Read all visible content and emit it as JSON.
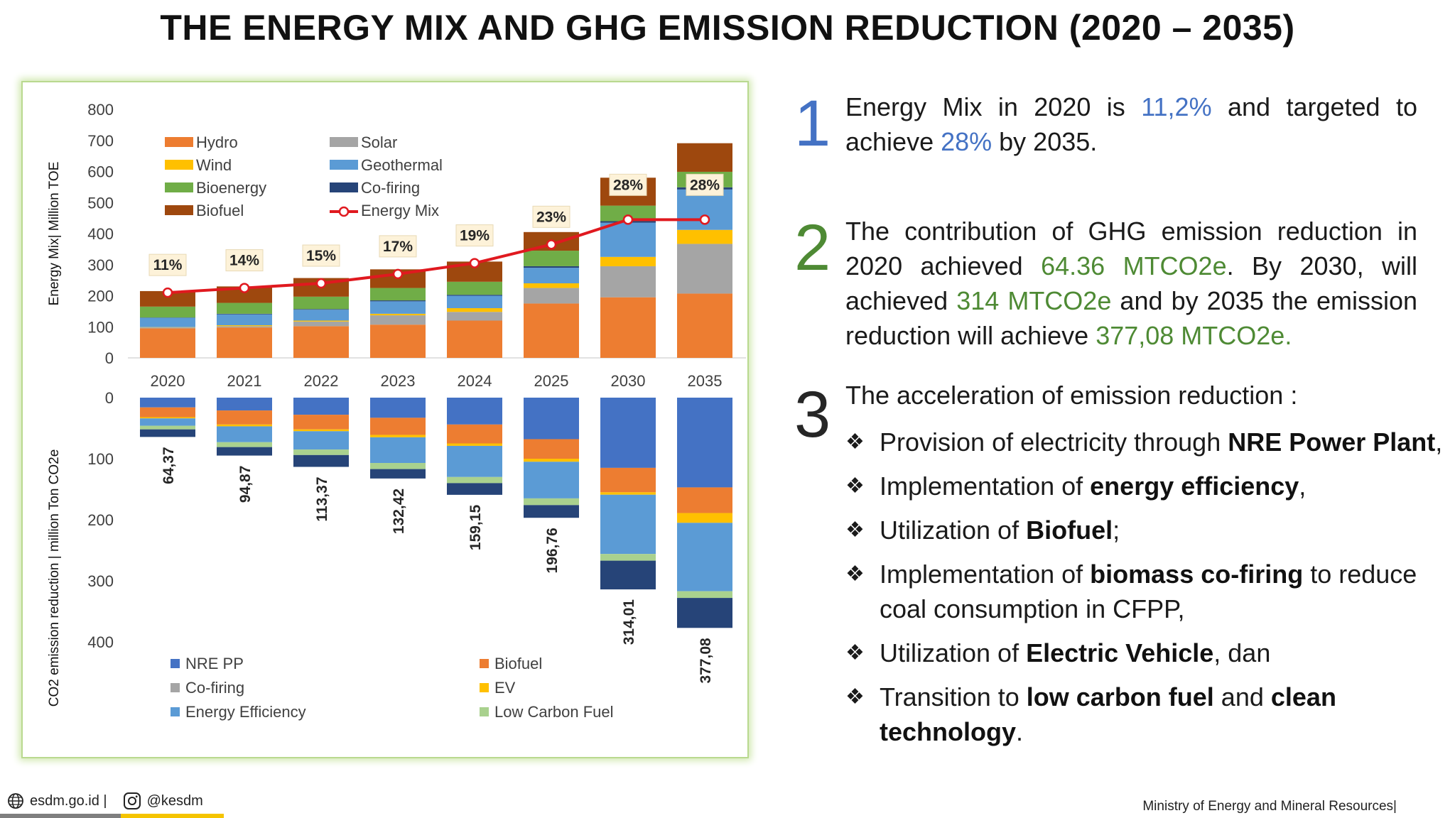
{
  "title": "THE ENERGY MIX AND GHG EMISSION REDUCTION (2020 – 2035)",
  "colors": {
    "hydro": "#ed7d31",
    "wind": "#ffc000",
    "bioenergy": "#70ad47",
    "biofuel": "#9e480e",
    "solar": "#a5a5a5",
    "geothermal": "#5b9bd5",
    "cofiring": "#264478",
    "energy_mix": "#e0191f",
    "nre_pp": "#4472c4",
    "biofuel_lower": "#ed7d31",
    "cofiring_lower": "#a5a5a5",
    "ev": "#ffc000",
    "energy_efficiency": "#5b9bd5",
    "low_carbon_fuel": "#a9d18e",
    "accent_blue": "#4472c4",
    "accent_green": "#4e8a34"
  },
  "chart_data": [
    {
      "type": "bar",
      "stacked": true,
      "categories": [
        "2020",
        "2021",
        "2022",
        "2023",
        "2024",
        "2025",
        "2030",
        "2035"
      ],
      "ylabel": "Energy Mix| Million TOE",
      "ylim": [
        0,
        800
      ],
      "yticks": [
        "0",
        "100",
        "200",
        "300",
        "400",
        "500",
        "600",
        "700",
        "800"
      ],
      "legend_position": "top-left",
      "series": [
        {
          "name": "Hydro",
          "values": [
            95,
            98,
            102,
            107,
            120,
            175,
            195,
            207
          ]
        },
        {
          "name": "Solar",
          "values": [
            3,
            4,
            15,
            30,
            28,
            50,
            100,
            160
          ]
        },
        {
          "name": "Wind",
          "values": [
            1,
            3,
            3,
            5,
            12,
            15,
            30,
            45
          ]
        },
        {
          "name": "Geothermal",
          "values": [
            30,
            35,
            35,
            40,
            40,
            50,
            110,
            130
          ]
        },
        {
          "name": "Co-firing",
          "values": [
            1,
            2,
            2,
            3,
            3,
            5,
            5,
            7
          ]
        },
        {
          "name": "Bioenergy",
          "values": [
            35,
            35,
            40,
            40,
            42,
            50,
            50,
            50
          ]
        },
        {
          "name": "Biofuel",
          "values": [
            50,
            53,
            60,
            60,
            65,
            60,
            90,
            92
          ]
        }
      ],
      "line_series": {
        "name": "Energy Mix",
        "y_plot": [
          210,
          225,
          240,
          270,
          305,
          365,
          445,
          445
        ]
      },
      "data_labels": [
        "11%",
        "14%",
        "15%",
        "17%",
        "19%",
        "23%",
        "28%",
        "28%"
      ]
    },
    {
      "type": "bar",
      "stacked": true,
      "orientation": "downward",
      "categories": [
        "2020",
        "2021",
        "2022",
        "2023",
        "2024",
        "2025",
        "2030",
        "2035"
      ],
      "ylabel": "CO2 emission reduction | million Ton CO2e",
      "ylim": [
        0,
        400
      ],
      "yticks": [
        "0",
        "100",
        "200",
        "300",
        "400"
      ],
      "legend_position": "bottom",
      "series": [
        {
          "name": "NRE PP",
          "values": [
            16,
            21,
            28,
            33,
            44,
            68,
            115,
            147
          ]
        },
        {
          "name": "Biofuel",
          "values": [
            16,
            23,
            24,
            28,
            31,
            32,
            40,
            42
          ]
        },
        {
          "name": "EV",
          "values": [
            2,
            3,
            3,
            4,
            4,
            5,
            4,
            16
          ]
        },
        {
          "name": "Energy Efficiency",
          "values": [
            12,
            26,
            30,
            42,
            51,
            60,
            97,
            112
          ]
        },
        {
          "name": "Low Carbon Fuel",
          "values": [
            6,
            8,
            9,
            10,
            10,
            11,
            11,
            11
          ]
        },
        {
          "name": "Co-firing",
          "values": [
            12.37,
            13.87,
            19.37,
            15.42,
            19.15,
            20.76,
            47.01,
            49.08
          ]
        }
      ],
      "totals_labels": [
        "64,37",
        "94,87",
        "113,37",
        "132,42",
        "159,15",
        "196,76",
        "314,01",
        "377,08"
      ]
    }
  ],
  "points": {
    "p1": {
      "number": "1",
      "parts": [
        "Energy Mix in 2020 is ",
        "11,2%",
        " and targeted to achieve ",
        "28%",
        " by 2035."
      ]
    },
    "p2": {
      "number": "2",
      "parts": [
        "The contribution of GHG emission reduction in 2020 achieved ",
        "64.36 MTCO2e",
        ". By 2030, will achieved ",
        "314 MTCO2e",
        " and by 2035 the emission reduction will achieve ",
        "377,08 MTCO2e."
      ]
    },
    "p3": {
      "number": "3",
      "heading": "The acceleration of emission reduction :",
      "bullet_symbol": "❖",
      "bullets": [
        {
          "pre": "Provision of electricity through ",
          "bold": "NRE Power Plant",
          "post": ","
        },
        {
          "pre": "Implementation of ",
          "bold": "energy efficiency",
          "post": ","
        },
        {
          "pre": "Utilization of ",
          "bold": "Biofuel",
          "post": ";"
        },
        {
          "pre": "Implementation of ",
          "bold": "biomass co-firing",
          "post": " to reduce coal consumption in CFPP,"
        },
        {
          "pre": "Utilization of ",
          "bold": "Electric Vehicle",
          "post": ", dan"
        },
        {
          "pre": "Transition to ",
          "bold": "low carbon fuel",
          "mid": " and ",
          "bold2": "clean technology",
          "post": "."
        }
      ]
    }
  },
  "footer": {
    "website": "esdm.go.id |",
    "social": "@kesdm",
    "ministry": "Ministry of Energy and Mineral Resources|"
  }
}
